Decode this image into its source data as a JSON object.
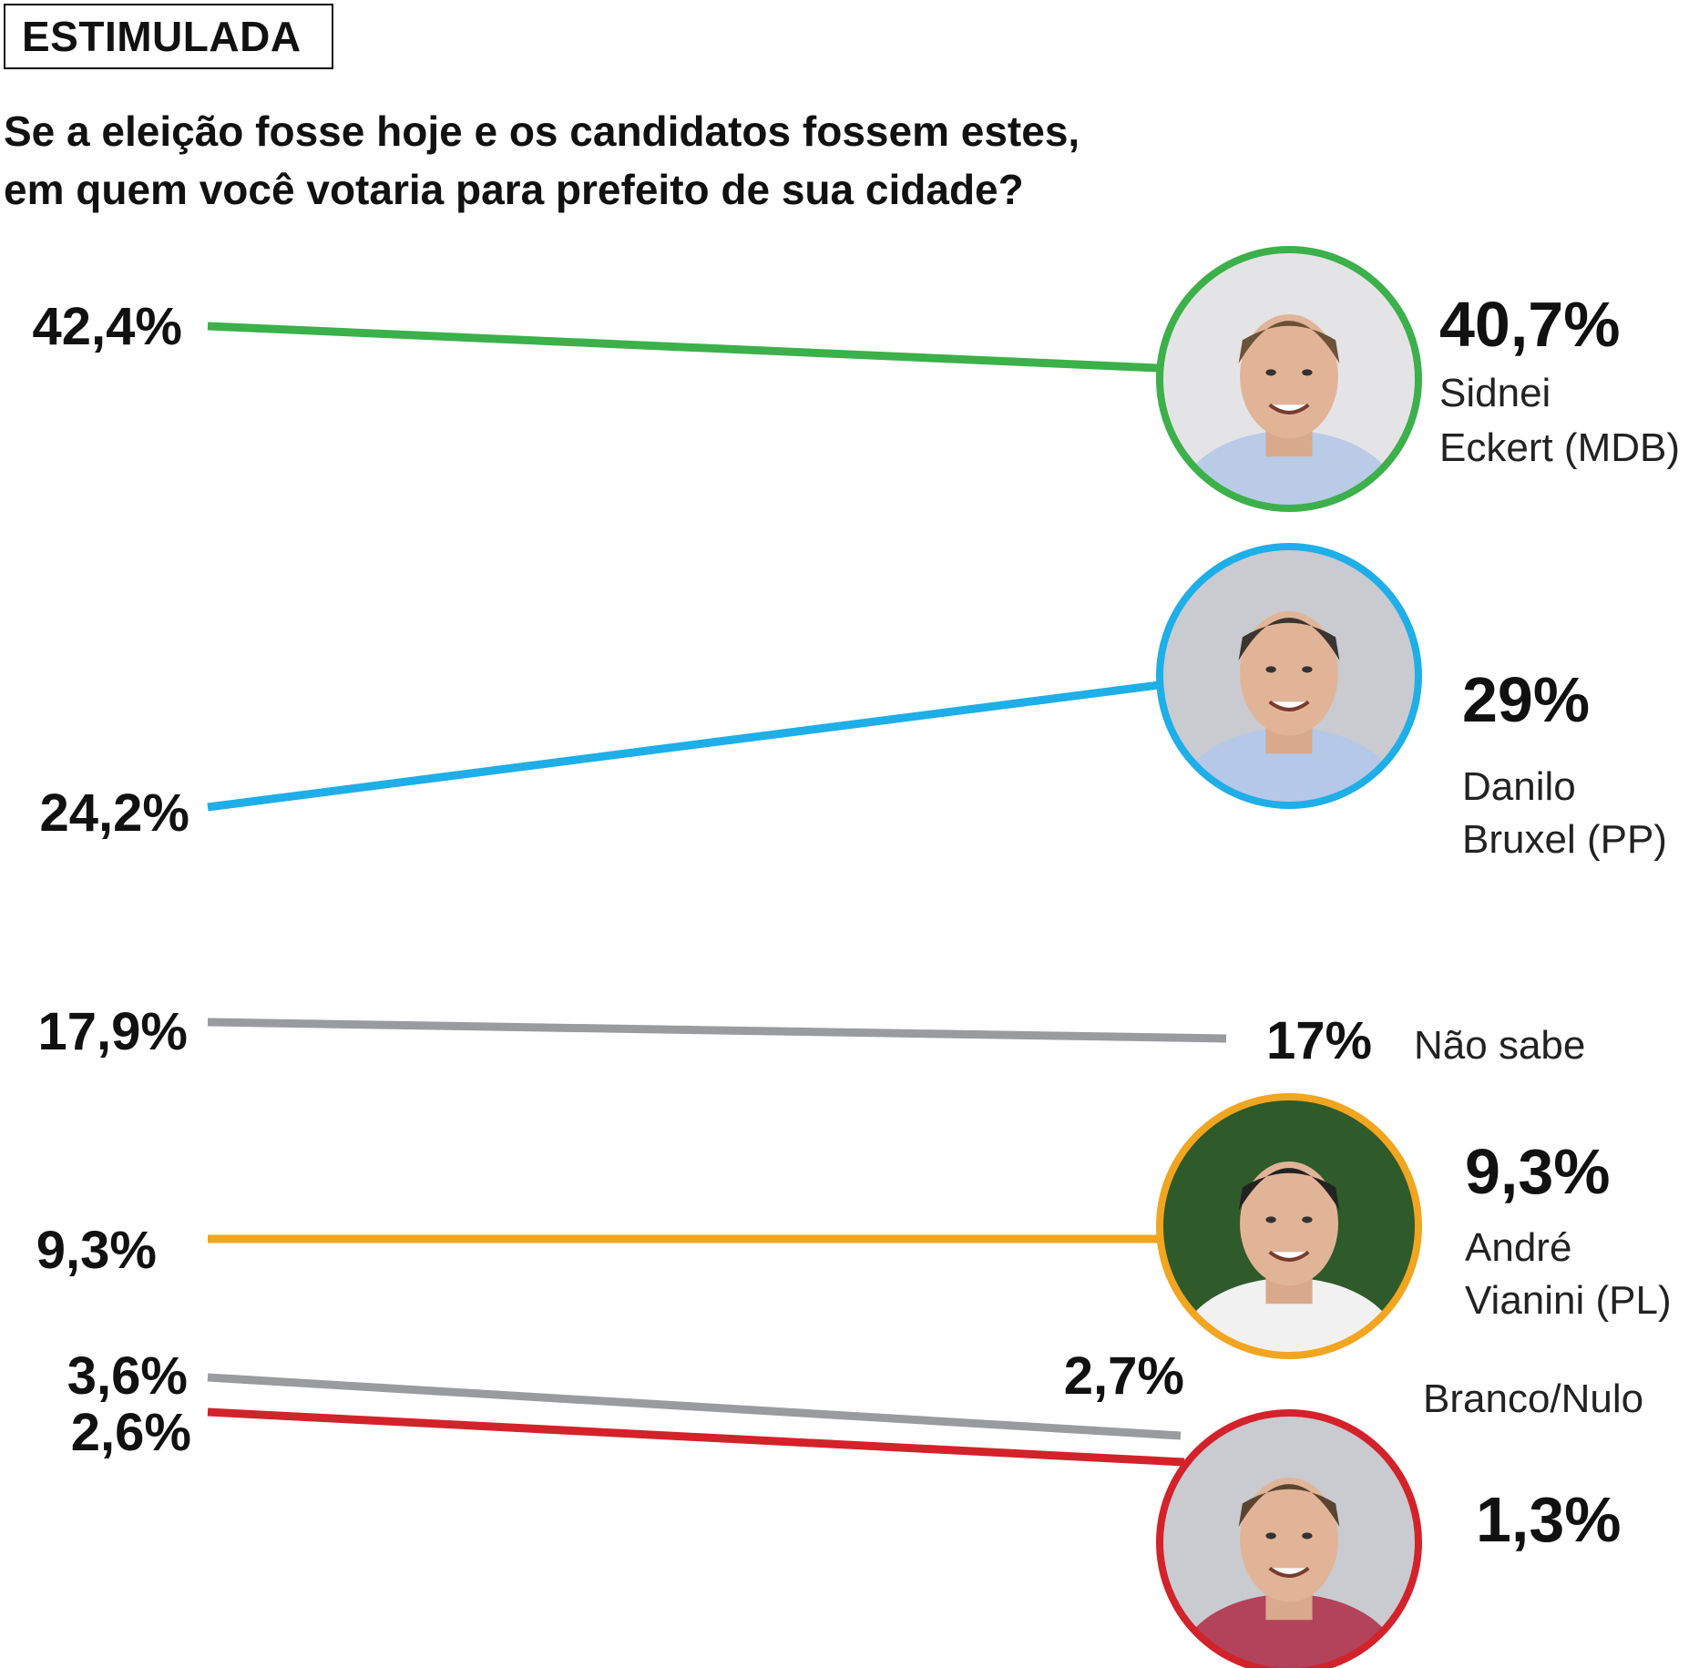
{
  "header": {
    "tag": "ESTIMULADA",
    "question_line1": "Se a eleição fosse hoje e os candidatos fossem estes,",
    "question_line2": "em quem você votaria para prefeito de sua cidade?"
  },
  "chart_data": {
    "type": "line",
    "title": "Se a eleição fosse hoje e os candidatos fossem estes, em quem você votaria para prefeito de sua cidade?",
    "subtitle": "ESTIMULADA",
    "x": [
      "",
      ""
    ],
    "series": [
      {
        "name": "Sidnei Eckert (MDB)",
        "name_line1": "Sidnei",
        "name_line2": "Eckert (MDB)",
        "values": [
          42.4,
          40.7
        ],
        "start_label": "42,4%",
        "end_label": "40,7%",
        "color": "#3cb04a",
        "photo": "candidate-photo-sidnei"
      },
      {
        "name": "Danilo Bruxel (PP)",
        "name_line1": "Danilo",
        "name_line2": "Bruxel (PP)",
        "values": [
          24.2,
          29
        ],
        "start_label": "24,2%",
        "end_label": "29%",
        "color": "#1eaee8",
        "photo": "candidate-photo-danilo"
      },
      {
        "name": "Não sabe",
        "values": [
          17.9,
          17
        ],
        "start_label": "17,9%",
        "end_label": "17%",
        "color": "#9a9b9f"
      },
      {
        "name": "André Vianini (PL)",
        "name_line1": "André",
        "name_line2": "Vianini (PL)",
        "values": [
          9.3,
          9.3
        ],
        "start_label": "9,3%",
        "end_label": "9,3%",
        "color": "#f2a51e",
        "photo": "candidate-photo-andre"
      },
      {
        "name": "Branco/Nulo",
        "values": [
          3.6,
          2.7
        ],
        "start_label": "3,6%",
        "end_label": "2,7%",
        "color": "#9a9b9f"
      },
      {
        "name": "",
        "values": [
          2.6,
          1.3
        ],
        "start_label": "2,6%",
        "end_label": "1,3%",
        "color": "#d3222a",
        "photo": "candidate-photo-red"
      }
    ]
  }
}
